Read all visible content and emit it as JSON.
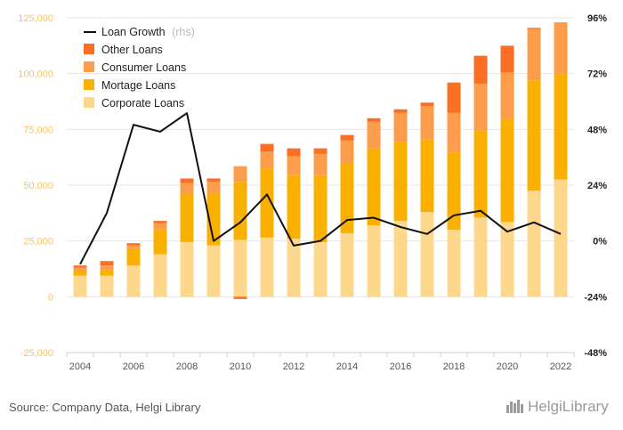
{
  "source": "Source: Company Data, Helgi Library",
  "logo": {
    "text": "HelgiLibrary",
    "icon": "city-skyline-icon"
  },
  "chart_data": {
    "type": "bar",
    "stacked": true,
    "categories": [
      2004,
      2005,
      2006,
      2007,
      2008,
      2009,
      2010,
      2011,
      2012,
      2013,
      2014,
      2015,
      2016,
      2017,
      2018,
      2019,
      2020,
      2021,
      2022
    ],
    "x_tick_labels": [
      "2004",
      "2006",
      "2008",
      "2010",
      "2012",
      "2014",
      "2016",
      "2018",
      "2020",
      "2022"
    ],
    "y_left": {
      "min": -25000,
      "max": 125000,
      "ticks": [
        "-25,000",
        "0",
        "25,000",
        "50,000",
        "75,000",
        "100,000",
        "125,000"
      ],
      "tick_values": [
        -25000,
        0,
        25000,
        50000,
        75000,
        100000,
        125000
      ]
    },
    "y_right": {
      "min": -48,
      "max": 96,
      "ticks": [
        "-48%",
        "-24%",
        "0%",
        "24%",
        "48%",
        "72%",
        "96%"
      ],
      "tick_values": [
        -48,
        -24,
        0,
        24,
        48,
        72,
        96
      ]
    },
    "series": [
      {
        "name": "Corporate Loans",
        "color": "#fdd88c",
        "values": [
          9500,
          9500,
          14000,
          19000,
          24500,
          23000,
          25500,
          26500,
          26000,
          24500,
          28500,
          32000,
          34000,
          38000,
          30000,
          35500,
          33500,
          47500,
          52500
        ]
      },
      {
        "name": "Mortage Loans",
        "color": "#f9b000",
        "values": [
          2000,
          2500,
          7500,
          11000,
          21500,
          23000,
          26000,
          31000,
          28500,
          30000,
          31500,
          34500,
          35500,
          32500,
          34500,
          39000,
          46000,
          49500,
          47500
        ]
      },
      {
        "name": "Consumer Loans",
        "color": "#fd9d4b",
        "values": [
          1500,
          2000,
          1500,
          3000,
          5000,
          5500,
          7000,
          7500,
          8500,
          9500,
          10000,
          12000,
          13000,
          15000,
          18000,
          21000,
          21000,
          23000,
          23000
        ]
      },
      {
        "name": "Other Loans",
        "color": "#fa6f23",
        "values": [
          1000,
          2000,
          1000,
          1000,
          2000,
          1500,
          -1000,
          3500,
          3500,
          2500,
          2500,
          1500,
          1500,
          1500,
          13500,
          12500,
          12000,
          500,
          0
        ]
      }
    ],
    "line": {
      "name": "Loan Growth",
      "axis": "rhs",
      "axis_note": "(rhs)",
      "color": "#111111",
      "values": [
        -10,
        12,
        50,
        47,
        55,
        0,
        8,
        20,
        -2,
        0,
        9,
        10,
        6,
        3,
        11,
        13,
        4,
        8,
        3
      ]
    },
    "legend": {
      "position": "top-left",
      "entries": [
        "Loan Growth",
        "Other Loans",
        "Consumer Loans",
        "Mortage Loans",
        "Corporate Loans"
      ]
    },
    "grid": true
  }
}
